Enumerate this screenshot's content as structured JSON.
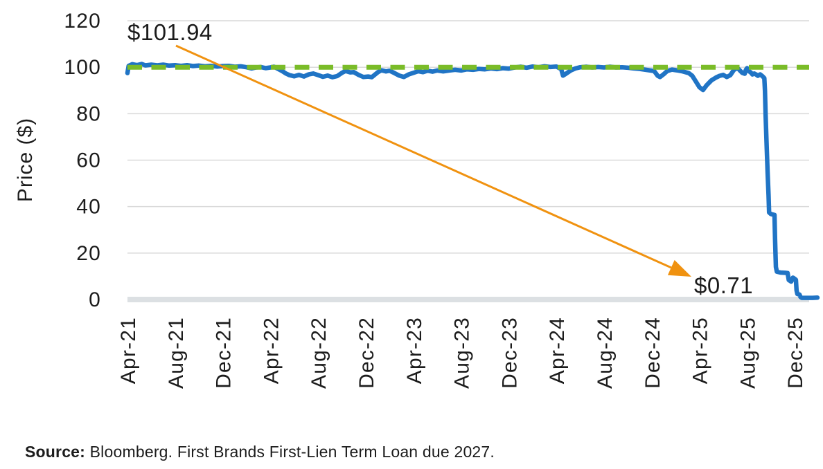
{
  "chart_data": {
    "type": "line",
    "title": "",
    "xlabel": "",
    "ylabel": "Price ($)",
    "ylim": [
      0,
      120
    ],
    "y_ticks": [
      120,
      100,
      80,
      60,
      40,
      20,
      0
    ],
    "x_tick_labels": [
      "Apr-21",
      "Aug-21",
      "Dec-21",
      "Apr-22",
      "Aug-22",
      "Dec-22",
      "Apr-23",
      "Aug-23",
      "Dec-23",
      "Apr-24",
      "Aug-24",
      "Dec-24",
      "Apr-25",
      "Aug-25",
      "Dec-25"
    ],
    "x_tick_months": [
      0,
      4,
      8,
      12,
      16,
      20,
      24,
      28,
      32,
      36,
      40,
      44,
      48,
      52,
      56
    ],
    "grid": "horizontal gridlines every 20; thick light-gray baseline at 0; no legend",
    "series": [
      {
        "name": "First Brands First-Lien Term Loan price",
        "type": "line",
        "color": "#2074c5",
        "points": [
          [
            0,
            97.5
          ],
          [
            0.1,
            100.6
          ],
          [
            0.4,
            101.3
          ],
          [
            0.8,
            100.9
          ],
          [
            1.2,
            101.4
          ],
          [
            1.5,
            100.8
          ],
          [
            2,
            101.1
          ],
          [
            2.5,
            100.8
          ],
          [
            3,
            101.1
          ],
          [
            3.5,
            100.7
          ],
          [
            4,
            100.9
          ],
          [
            4.5,
            100.6
          ],
          [
            5,
            100.9
          ],
          [
            5.5,
            100.5
          ],
          [
            6,
            100.7
          ],
          [
            6.5,
            100.4
          ],
          [
            7,
            100.6
          ],
          [
            7.5,
            100.3
          ],
          [
            8,
            100.5
          ],
          [
            8.5,
            100.6
          ],
          [
            9,
            100.2
          ],
          [
            9.5,
            100.4
          ],
          [
            10,
            100
          ],
          [
            10.4,
            99.5
          ],
          [
            10.8,
            99.9
          ],
          [
            11.2,
            100.1
          ],
          [
            11.6,
            99.6
          ],
          [
            12,
            99.9
          ],
          [
            12.3,
            100.2
          ],
          [
            12.6,
            99.4
          ],
          [
            13,
            98.3
          ],
          [
            13.3,
            97.3
          ],
          [
            13.6,
            96.6
          ],
          [
            14,
            96.1
          ],
          [
            14.4,
            96.7
          ],
          [
            14.8,
            96
          ],
          [
            15.2,
            96.9
          ],
          [
            15.6,
            97.3
          ],
          [
            16,
            96.6
          ],
          [
            16.4,
            95.9
          ],
          [
            16.8,
            96.4
          ],
          [
            17.2,
            95.7
          ],
          [
            17.6,
            96.2
          ],
          [
            18,
            97.6
          ],
          [
            18.3,
            98.4
          ],
          [
            18.7,
            97.8
          ],
          [
            19,
            97.9
          ],
          [
            19.4,
            96.7
          ],
          [
            19.8,
            95.8
          ],
          [
            20.2,
            96
          ],
          [
            20.5,
            95.7
          ],
          [
            21,
            97.8
          ],
          [
            21.3,
            98.7
          ],
          [
            21.7,
            98.2
          ],
          [
            22,
            98.5
          ],
          [
            22.4,
            97.5
          ],
          [
            22.8,
            96.4
          ],
          [
            23.2,
            95.8
          ],
          [
            23.6,
            96.9
          ],
          [
            24,
            97.6
          ],
          [
            24.4,
            98.3
          ],
          [
            24.8,
            97.9
          ],
          [
            25.2,
            98.5
          ],
          [
            25.6,
            98.1
          ],
          [
            26,
            98.6
          ],
          [
            26.5,
            98.2
          ],
          [
            27,
            98.6
          ],
          [
            27.5,
            98.9
          ],
          [
            28,
            98.6
          ],
          [
            28.5,
            99.1
          ],
          [
            29,
            98.9
          ],
          [
            29.5,
            99.3
          ],
          [
            30,
            99.1
          ],
          [
            30.5,
            99.5
          ],
          [
            31,
            99.2
          ],
          [
            31.5,
            99.6
          ],
          [
            32,
            99.4
          ],
          [
            32.5,
            99.9
          ],
          [
            33,
            100.2
          ],
          [
            33.5,
            99.8
          ],
          [
            34,
            100.3
          ],
          [
            34.5,
            100
          ],
          [
            35,
            100.4
          ],
          [
            35.5,
            100.1
          ],
          [
            36,
            100.3
          ],
          [
            36.4,
            99.2
          ],
          [
            36.55,
            96.4
          ],
          [
            36.8,
            97.2
          ],
          [
            37.2,
            98.6
          ],
          [
            37.6,
            99.5
          ],
          [
            38,
            100
          ],
          [
            38.5,
            100.2
          ],
          [
            39,
            99.9
          ],
          [
            39.5,
            100.1
          ],
          [
            40,
            99.9
          ],
          [
            40.5,
            100.2
          ],
          [
            41,
            99.9
          ],
          [
            41.5,
            100
          ],
          [
            42,
            99.8
          ],
          [
            42.5,
            99.5
          ],
          [
            43,
            99.3
          ],
          [
            43.5,
            98.9
          ],
          [
            44.2,
            98.4
          ],
          [
            44.5,
            96.3
          ],
          [
            44.7,
            95.8
          ],
          [
            45,
            97
          ],
          [
            45.3,
            98.4
          ],
          [
            45.7,
            99
          ],
          [
            46.1,
            98.7
          ],
          [
            46.6,
            98.2
          ],
          [
            47.1,
            97.5
          ],
          [
            47.4,
            96.3
          ],
          [
            47.7,
            93.9
          ],
          [
            48,
            91.4
          ],
          [
            48.3,
            90.2
          ],
          [
            48.6,
            92.2
          ],
          [
            49,
            94.3
          ],
          [
            49.4,
            95.6
          ],
          [
            49.7,
            96.3
          ],
          [
            50,
            96.7
          ],
          [
            50.3,
            95.8
          ],
          [
            50.6,
            96.6
          ],
          [
            50.9,
            98.9
          ],
          [
            51.2,
            99.7
          ],
          [
            51.4,
            98.6
          ],
          [
            51.6,
            97.6
          ],
          [
            51.8,
            97.2
          ],
          [
            51.9,
            98.9
          ],
          [
            52,
            99.6
          ],
          [
            52.15,
            98.3
          ],
          [
            52.3,
            97.8
          ],
          [
            52.45,
            96.9
          ],
          [
            52.6,
            97.3
          ],
          [
            52.75,
            96.9
          ],
          [
            52.9,
            96.3
          ],
          [
            53.1,
            96.9
          ],
          [
            53.3,
            96.1
          ],
          [
            53.45,
            95.3
          ],
          [
            53.5,
            90
          ],
          [
            53.55,
            80
          ],
          [
            53.65,
            65
          ],
          [
            53.72,
            55
          ],
          [
            53.8,
            45
          ],
          [
            53.85,
            37.5
          ],
          [
            54,
            36.8
          ],
          [
            54.3,
            36.4
          ],
          [
            54.35,
            26
          ],
          [
            54.42,
            14
          ],
          [
            54.5,
            12
          ],
          [
            54.8,
            11.6
          ],
          [
            55.2,
            11.5
          ],
          [
            55.4,
            11.4
          ],
          [
            55.5,
            8.4
          ],
          [
            55.7,
            7.7
          ],
          [
            55.85,
            9.4
          ],
          [
            56,
            8.9
          ],
          [
            56.1,
            8.5
          ],
          [
            56.15,
            4
          ],
          [
            56.22,
            2.4
          ],
          [
            56.4,
            2.1
          ],
          [
            56.48,
            1.1
          ],
          [
            56.6,
            0.72
          ],
          [
            57,
            0.71
          ],
          [
            57.5,
            0.71
          ],
          [
            57.9,
            0.8
          ]
        ]
      },
      {
        "name": "Par reference line",
        "type": "dashed-horizontal",
        "color": "#7abc28",
        "value": 100
      }
    ],
    "annotations": [
      {
        "id": "start-price",
        "text": "$101.94"
      },
      {
        "id": "end-price",
        "text": "$0.71"
      },
      {
        "id": "trend-arrow",
        "color": "#f09210",
        "from": "start-price",
        "to": "end-price"
      }
    ]
  },
  "source_note": {
    "label": "Source:",
    "text": " Bloomberg. First Brands First-Lien Term Loan due 2027."
  },
  "colors": {
    "line_blue": "#2074c5",
    "dash_green": "#7abc28",
    "arrow_orange": "#f09210",
    "gridline": "#d9d9d9",
    "baseline": "#dce0e3",
    "text": "#1c1c1c",
    "background": "#ffffff"
  }
}
